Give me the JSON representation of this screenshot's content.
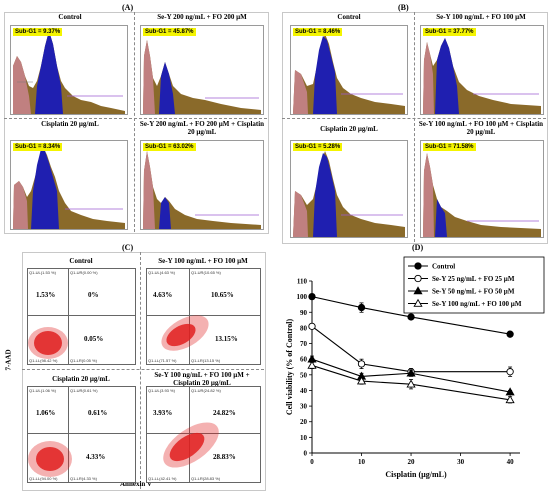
{
  "panel_letters": {
    "a": "(A)",
    "b": "(B)",
    "c": "(C)",
    "d": "(D)"
  },
  "panel_a": {
    "hist": [
      {
        "title": "Control",
        "subg1": "Sub-G1 = 9.37%",
        "color": "#1f1fb0"
      },
      {
        "title": "Se-Y 200 ng/mL + FO 200 µM",
        "subg1": "Sub-G1 = 45.87%",
        "color": "#1f1fb0"
      },
      {
        "title": "Cisplatin 20 µg/mL",
        "subg1": "Sub-G1 = 8.34%",
        "color": "#1f1fb0"
      },
      {
        "title": "Se-Y 200 ng/mL + FO 200 µM + Cisplatin 20 µg/mL",
        "subg1": "Sub-G1 = 63.02%",
        "color": "#1f1fb0"
      }
    ]
  },
  "panel_b": {
    "hist": [
      {
        "title": "Control",
        "subg1": "Sub-G1 = 8.46%"
      },
      {
        "title": "Se-Y 100 ng/mL + FO 100 µM",
        "subg1": "Sub-G1 = 37.77%"
      },
      {
        "title": "Cisplatin 20 µg/mL",
        "subg1": "Sub-G1 = 5.28%"
      },
      {
        "title": "Se-Y 100 ng/mL + FO 100 µM + Cisplatin 20 µg/mL",
        "subg1": "Sub-G1 = 71.58%"
      }
    ]
  },
  "panel_c": {
    "y_axis_label": "7-AAD",
    "x_axis_label": "Annexin V",
    "plots": [
      {
        "title": "Control",
        "ul": "1.53%",
        "ur": "0%",
        "lr": "0.05%"
      },
      {
        "title": "Se-Y 100 ng/mL + FO 100 µM",
        "ul": "4.63%",
        "ur": "10.65%",
        "lr": "13.15%"
      },
      {
        "title": "Cisplatin 20 µg/mL",
        "ul": "1.06%",
        "ur": "0.61%",
        "lr": "4.33%"
      },
      {
        "title": "Se-Y 100 ng/mL + FO 100 µM + Cisplatin 20 µg/mL",
        "ul": "3.93%",
        "ur": "24.82%",
        "lr": "28.83%"
      }
    ],
    "colors": {
      "dots": "#e02020"
    }
  },
  "chart_data": {
    "type": "line",
    "title": "",
    "xlabel": "Cisplatin (µg/mL)",
    "ylabel": "Cell viability (% of Control)",
    "x": [
      0,
      10,
      20,
      40
    ],
    "xlim": [
      0,
      42
    ],
    "ylim": [
      0,
      110
    ],
    "yticks": [
      0,
      10,
      20,
      30,
      40,
      50,
      60,
      70,
      80,
      90,
      100,
      110
    ],
    "xticks": [
      0,
      10,
      20,
      30,
      40
    ],
    "legend_position": "top-right",
    "series": [
      {
        "name": "Control",
        "values": [
          100,
          93,
          87,
          76
        ],
        "errors": [
          0,
          3,
          1,
          1
        ],
        "marker": "filled-circle"
      },
      {
        "name": "Se-Y 25 ng/mL + FO 25 µM",
        "values": [
          81,
          57,
          52,
          52
        ],
        "errors": [
          1,
          3,
          2,
          3
        ],
        "marker": "open-circle"
      },
      {
        "name": "Se-Y 50 ng/mL + FO 50 µM",
        "values": [
          60,
          49,
          51,
          39
        ],
        "errors": [
          2,
          2,
          2,
          1
        ],
        "marker": "filled-triangle"
      },
      {
        "name": "Se-Y 100 ng/mL + FO 100 µM",
        "values": [
          56,
          46,
          44,
          34
        ],
        "errors": [
          2,
          2,
          3,
          2
        ],
        "marker": "open-triangle"
      }
    ]
  }
}
